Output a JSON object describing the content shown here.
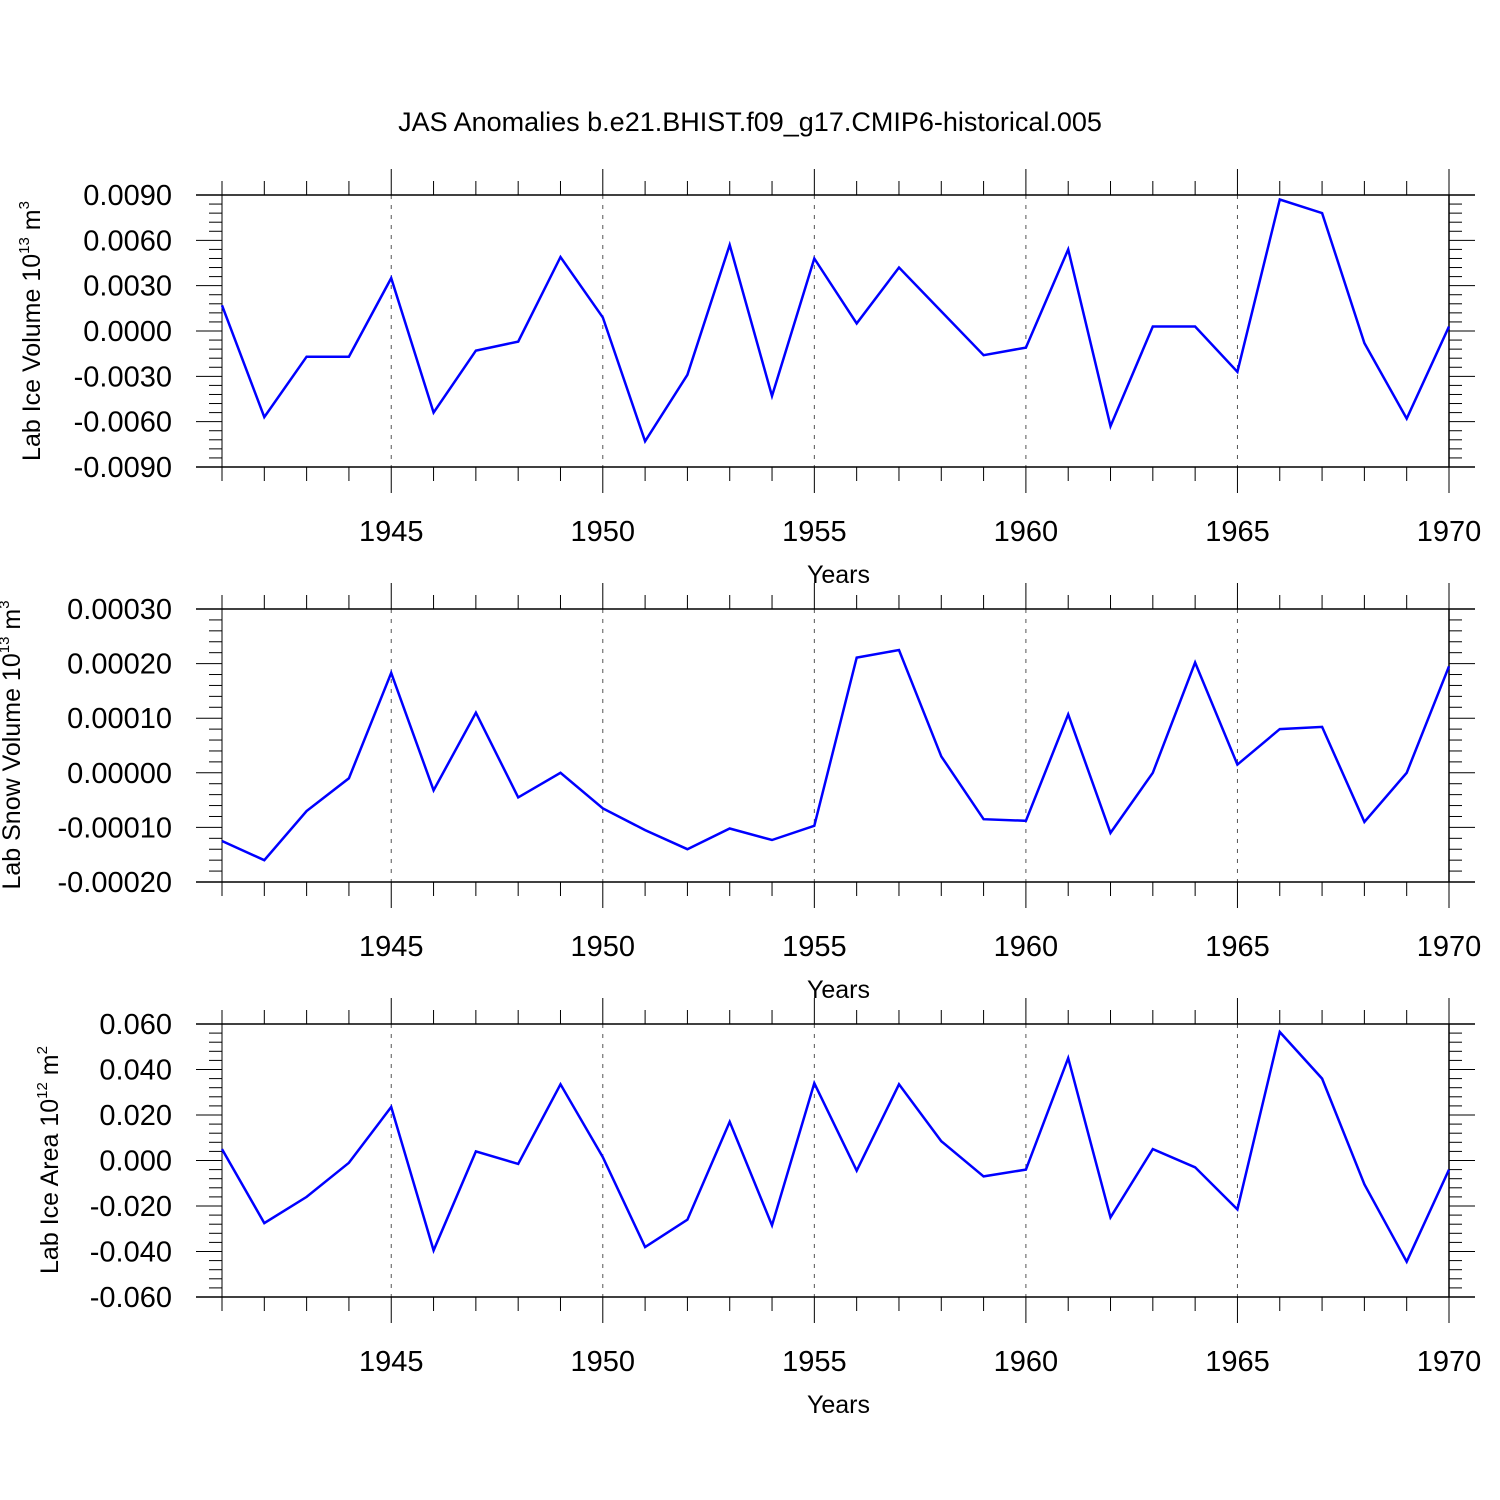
{
  "figure": {
    "title": "JAS Anomalies b.e21.BHIST.f09_g17.CMIP6-historical.005",
    "line_color": "#0000ff"
  },
  "chart_data": [
    {
      "type": "line",
      "ylabel": {
        "main": "Lab Ice Volume 10",
        "exp": "13",
        "unit": " m",
        "unit_exp": "3"
      },
      "xlabel": "Years",
      "xlim": [
        1941,
        1970
      ],
      "ylim": [
        -0.009,
        0.009
      ],
      "xticks": [
        1945,
        1950,
        1955,
        1960,
        1965,
        1970
      ],
      "xtick_labels": [
        "1945",
        "1950",
        "1955",
        "1960",
        "1965",
        "1970"
      ],
      "yticks": [
        -0.009,
        -0.006,
        -0.003,
        0.0,
        0.003,
        0.006,
        0.009
      ],
      "ytick_labels": [
        "-0.0090",
        "-0.0060",
        "-0.0030",
        "0.0000",
        "0.0030",
        "0.0060",
        "0.0090"
      ],
      "grid": "dashed vertical at major x ticks",
      "x": [
        1941,
        1942,
        1943,
        1944,
        1945,
        1946,
        1947,
        1948,
        1949,
        1950,
        1951,
        1952,
        1953,
        1954,
        1955,
        1956,
        1957,
        1958,
        1959,
        1960,
        1961,
        1962,
        1963,
        1964,
        1965,
        1966,
        1967,
        1968,
        1969,
        1970
      ],
      "series": [
        {
          "values": [
            0.0017,
            -0.0057,
            -0.0017,
            -0.0017,
            0.0035,
            -0.0054,
            -0.0013,
            -0.0007,
            0.0049,
            0.0009,
            -0.0073,
            -0.0029,
            0.0057,
            -0.0043,
            0.0048,
            0.0005,
            0.0042,
            0.0013,
            -0.0016,
            -0.0011,
            0.0054,
            -0.0063,
            0.0003,
            0.0003,
            -0.0027,
            0.0087,
            0.0078,
            -0.0008,
            -0.0058,
            0.0003
          ]
        }
      ]
    },
    {
      "type": "line",
      "ylabel": {
        "main": "Lab Snow Volume 10",
        "exp": "13",
        "unit": " m",
        "unit_exp": "3"
      },
      "xlabel": "Years",
      "xlim": [
        1941,
        1970
      ],
      "ylim": [
        -0.0002,
        0.0003
      ],
      "xticks": [
        1945,
        1950,
        1955,
        1960,
        1965,
        1970
      ],
      "xtick_labels": [
        "1945",
        "1950",
        "1955",
        "1960",
        "1965",
        "1970"
      ],
      "yticks": [
        -0.0002,
        -0.0001,
        0.0,
        0.0001,
        0.0002,
        0.0003
      ],
      "ytick_labels": [
        "-0.00020",
        "-0.00010",
        "0.00000",
        "0.00010",
        "0.00020",
        "0.00030"
      ],
      "grid": "dashed vertical at major x ticks",
      "x": [
        1941,
        1942,
        1943,
        1944,
        1945,
        1946,
        1947,
        1948,
        1949,
        1950,
        1951,
        1952,
        1953,
        1954,
        1955,
        1956,
        1957,
        1958,
        1959,
        1960,
        1961,
        1962,
        1963,
        1964,
        1965,
        1966,
        1967,
        1968,
        1969,
        1970
      ],
      "series": [
        {
          "values": [
            -0.000125,
            -0.00016,
            -7e-05,
            -1e-05,
            0.000183,
            -3.2e-05,
            0.00011,
            -4.5e-05,
            0.0,
            -6.5e-05,
            -0.000105,
            -0.00014,
            -0.000102,
            -0.000123,
            -9.7e-05,
            0.000211,
            0.000225,
            3e-05,
            -8.5e-05,
            -8.8e-05,
            0.000107,
            -0.00011,
            0.0,
            0.000202,
            1.5e-05,
            8e-05,
            8.4e-05,
            -9e-05,
            0.0,
            0.000195
          ]
        }
      ]
    },
    {
      "type": "line",
      "ylabel": {
        "main": "Lab Ice Area 10",
        "exp": "12",
        "unit": " m",
        "unit_exp": "2"
      },
      "xlabel": "Years",
      "xlim": [
        1941,
        1970
      ],
      "ylim": [
        -0.06,
        0.06
      ],
      "xticks": [
        1945,
        1950,
        1955,
        1960,
        1965,
        1970
      ],
      "xtick_labels": [
        "1945",
        "1950",
        "1955",
        "1960",
        "1965",
        "1970"
      ],
      "yticks": [
        -0.06,
        -0.04,
        -0.02,
        0.0,
        0.02,
        0.04,
        0.06
      ],
      "ytick_labels": [
        "-0.060",
        "-0.040",
        "-0.020",
        "0.000",
        "0.020",
        "0.040",
        "0.060"
      ],
      "grid": "dashed vertical at major x ticks",
      "x": [
        1941,
        1942,
        1943,
        1944,
        1945,
        1946,
        1947,
        1948,
        1949,
        1950,
        1951,
        1952,
        1953,
        1954,
        1955,
        1956,
        1957,
        1958,
        1959,
        1960,
        1961,
        1962,
        1963,
        1964,
        1965,
        1966,
        1967,
        1968,
        1969,
        1970
      ],
      "series": [
        {
          "values": [
            0.005,
            -0.0275,
            -0.016,
            -0.001,
            0.0235,
            -0.0395,
            0.004,
            -0.0015,
            0.0335,
            0.0015,
            -0.038,
            -0.026,
            0.017,
            -0.0285,
            0.034,
            -0.0045,
            0.0335,
            0.0085,
            -0.007,
            -0.004,
            0.045,
            -0.025,
            0.005,
            -0.003,
            -0.0215,
            0.0565,
            0.036,
            -0.0105,
            -0.0445,
            -0.004
          ]
        }
      ]
    }
  ]
}
